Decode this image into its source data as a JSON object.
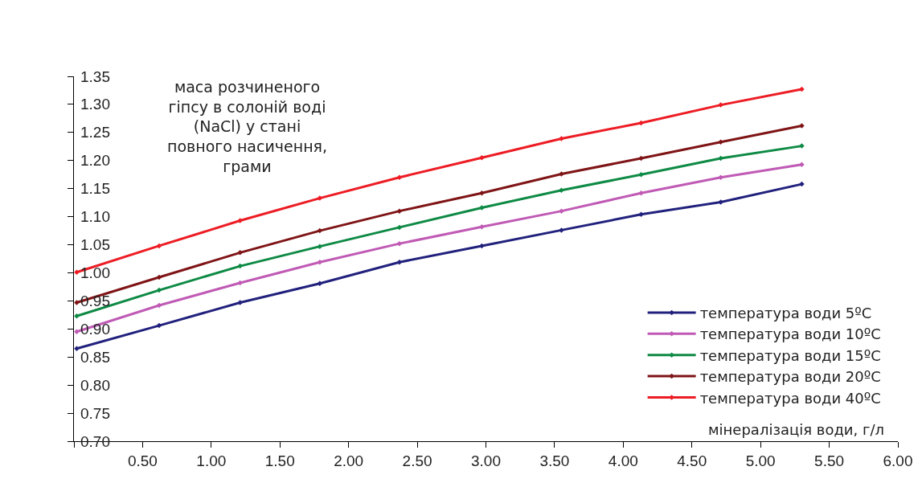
{
  "chart_data": {
    "type": "line",
    "ylabel": "маса розчиненого гіпсу в солоній воді (NaCl) у стані повного насичення, грами",
    "xlabel": "мінералізація води, г/л",
    "x": [
      0.02,
      0.62,
      1.21,
      1.79,
      2.37,
      2.97,
      3.55,
      4.13,
      4.71,
      5.3
    ],
    "series": [
      {
        "name": "температура води 5ºC",
        "color": "#21217d",
        "values": [
          0.865,
          0.906,
          0.947,
          0.981,
          1.019,
          1.048,
          1.076,
          1.104,
          1.126,
          1.158
        ]
      },
      {
        "name": "температура води 10ºC",
        "color": "#c05ab5",
        "values": [
          0.895,
          0.942,
          0.982,
          1.019,
          1.052,
          1.082,
          1.11,
          1.142,
          1.17,
          1.193
        ]
      },
      {
        "name": "температура води 15ºC",
        "color": "#0e8a45",
        "values": [
          0.923,
          0.969,
          1.012,
          1.047,
          1.081,
          1.116,
          1.147,
          1.175,
          1.204,
          1.226
        ]
      },
      {
        "name": "температура води 20ºC",
        "color": "#7f1416",
        "values": [
          0.947,
          0.992,
          1.036,
          1.075,
          1.11,
          1.142,
          1.176,
          1.204,
          1.233,
          1.262
        ]
      },
      {
        "name": "температура води 40ºC",
        "color": "#ed1c24",
        "values": [
          1.001,
          1.048,
          1.093,
          1.133,
          1.17,
          1.205,
          1.239,
          1.267,
          1.299,
          1.327
        ]
      }
    ],
    "xlim": [
      0,
      6
    ],
    "xticks": [
      {
        "value": 0,
        "label": null
      },
      {
        "value": 0.5,
        "label": "0.50"
      },
      {
        "value": 1,
        "label": "1.00"
      },
      {
        "value": 1.5,
        "label": "1.50"
      },
      {
        "value": 2,
        "label": "2.00"
      },
      {
        "value": 2.5,
        "label": "2.50"
      },
      {
        "value": 3,
        "label": "3.00"
      },
      {
        "value": 3.5,
        "label": "3.50"
      },
      {
        "value": 4,
        "label": "4.00"
      },
      {
        "value": 4.5,
        "label": "4.50"
      },
      {
        "value": 5,
        "label": "5.00"
      },
      {
        "value": 5.5,
        "label": "5.50"
      },
      {
        "value": 6,
        "label": "6.00"
      }
    ],
    "ylim": [
      0.7,
      1.35
    ],
    "yticks": [
      {
        "value": 0.7,
        "label": "0.70"
      },
      {
        "value": 0.75,
        "label": "0.75"
      },
      {
        "value": 0.8,
        "label": "0.80"
      },
      {
        "value": 0.85,
        "label": "0.85"
      },
      {
        "value": 0.9,
        "label": "0.90"
      },
      {
        "value": 0.95,
        "label": "0.95"
      },
      {
        "value": 1.0,
        "label": "1.00"
      },
      {
        "value": 1.05,
        "label": "1.05"
      },
      {
        "value": 1.1,
        "label": "1.10"
      },
      {
        "value": 1.15,
        "label": "1.15"
      },
      {
        "value": 1.2,
        "label": "1.20"
      },
      {
        "value": 1.25,
        "label": "1.25"
      },
      {
        "value": 1.3,
        "label": "1.30"
      },
      {
        "value": 1.35,
        "label": "1.35"
      }
    ],
    "legend": "bottom right",
    "marker": "diamond",
    "line_style": "solid"
  }
}
